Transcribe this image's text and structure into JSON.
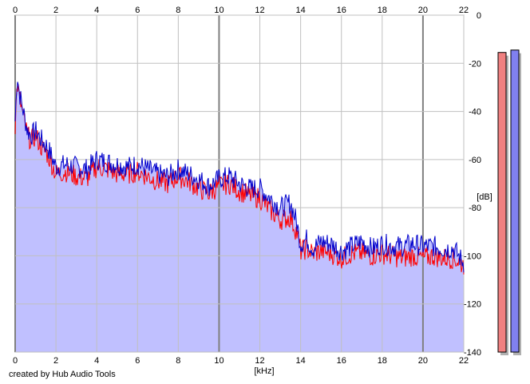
{
  "credit": "created by Hub Audio Tools",
  "colors": {
    "background": "#ffffff",
    "plot_fill": "#c0c0ff",
    "grid_minor": "#c0c0c0",
    "grid_major": "#808080",
    "left_channel": "#ff0000",
    "right_channel": "#0000cc",
    "meter_left": "#f08080",
    "meter_right": "#8080f0"
  },
  "chart_data": {
    "type": "line",
    "xlabel": "[kHz]",
    "ylabel": "[dB]",
    "xlim": [
      0,
      22
    ],
    "ylim": [
      -140,
      0
    ],
    "x_ticks": [
      "0",
      "2",
      "4",
      "6",
      "8",
      "10",
      "12",
      "14",
      "16",
      "18",
      "20",
      "22"
    ],
    "y_ticks": [
      "0",
      "-20",
      "-40",
      "-60",
      "-80",
      "-100",
      "-120",
      "-140"
    ],
    "grid": true,
    "series": [
      {
        "color": "#0000cc",
        "x": [
          0,
          0.1,
          0.2,
          0.4,
          0.6,
          0.8,
          1.0,
          1.3,
          1.6,
          2.0,
          2.5,
          3.0,
          3.5,
          4.0,
          4.5,
          5.0,
          5.5,
          6.0,
          6.5,
          7.0,
          7.5,
          8.0,
          8.5,
          9.0,
          9.5,
          10.0,
          10.5,
          11.0,
          11.5,
          12.0,
          12.5,
          13.0,
          13.5,
          13.8,
          14.0,
          14.3,
          14.6,
          15.0,
          15.5,
          16.0,
          16.5,
          17.0,
          17.5,
          18.0,
          18.5,
          19.0,
          19.5,
          20.0,
          20.5,
          21.0,
          21.5,
          22.0
        ],
        "y": [
          -44,
          -24,
          -32,
          -40,
          -48,
          -50,
          -48,
          -52,
          -55,
          -63,
          -62,
          -63,
          -64,
          -60,
          -61,
          -62,
          -63,
          -62,
          -64,
          -66,
          -67,
          -64,
          -66,
          -68,
          -71,
          -68,
          -67,
          -70,
          -72,
          -72,
          -76,
          -80,
          -78,
          -86,
          -95,
          -93,
          -97,
          -94,
          -95,
          -98,
          -96,
          -94,
          -97,
          -95,
          -96,
          -96,
          -95,
          -96,
          -96,
          -97,
          -97,
          -103
        ]
      },
      {
        "color": "#ff0000",
        "x": [
          0,
          0.1,
          0.2,
          0.4,
          0.6,
          0.8,
          1.0,
          1.3,
          1.6,
          2.0,
          2.5,
          3.0,
          3.5,
          4.0,
          4.5,
          5.0,
          5.5,
          6.0,
          6.5,
          7.0,
          7.5,
          8.0,
          8.5,
          9.0,
          9.5,
          10.0,
          10.5,
          11.0,
          11.5,
          12.0,
          12.5,
          13.0,
          13.5,
          13.8,
          14.0,
          14.3,
          14.6,
          15.0,
          15.5,
          16.0,
          16.5,
          17.0,
          17.5,
          18.0,
          18.5,
          19.0,
          19.5,
          20.0,
          20.5,
          21.0,
          21.5,
          22.0
        ],
        "y": [
          -46,
          -28,
          -34,
          -42,
          -50,
          -52,
          -50,
          -55,
          -58,
          -66,
          -65,
          -67,
          -68,
          -63,
          -64,
          -66,
          -66,
          -65,
          -67,
          -69,
          -70,
          -67,
          -69,
          -72,
          -74,
          -71,
          -70,
          -73,
          -75,
          -76,
          -81,
          -85,
          -84,
          -90,
          -98,
          -97,
          -99,
          -98,
          -99,
          -101,
          -99,
          -99,
          -100,
          -99,
          -100,
          -101,
          -100,
          -101,
          -100,
          -101,
          -101,
          -104
        ]
      }
    ],
    "fill_under": true,
    "level_meters": [
      {
        "channel": "L",
        "level_db": -15.5,
        "color": "#f08080"
      },
      {
        "channel": "R",
        "level_db": -14.5,
        "color": "#8080f0"
      }
    ]
  }
}
